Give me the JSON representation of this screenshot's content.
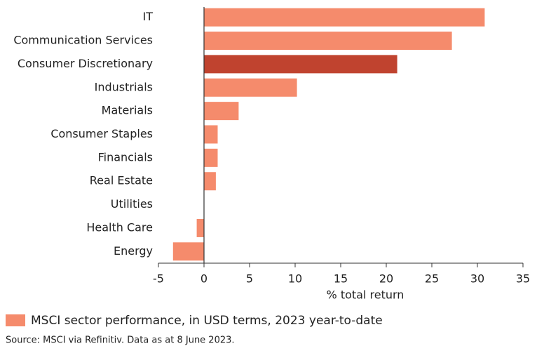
{
  "chart_data": {
    "type": "hbar",
    "categories": [
      "IT",
      "Communication Services",
      "Consumer Discretionary",
      "Industrials",
      "Materials",
      "Consumer Staples",
      "Financials",
      "Real Estate",
      "Utilities",
      "Health Care",
      "Energy"
    ],
    "series": [
      {
        "name": "MSCI sector performance, in USD terms, 2023 year-to-date",
        "color": "#f58b6c",
        "values": [
          30.8,
          27.2,
          21.2,
          10.2,
          3.8,
          1.5,
          1.5,
          1.3,
          0,
          -0.8,
          -3.4
        ],
        "colors": [
          "#f58b6c",
          "#f58b6c",
          "#c0432f",
          "#f58b6c",
          "#f58b6c",
          "#f58b6c",
          "#f58b6c",
          "#f58b6c",
          "#f58b6c",
          "#f58b6c",
          "#f58b6c"
        ]
      }
    ],
    "xlabel": "% total return",
    "xlim": [
      -5,
      35
    ],
    "xticks": [
      -5,
      0,
      5,
      10,
      15,
      20,
      25,
      30,
      35
    ],
    "source": "Source: MSCI via Refinitiv. Data as at 8 June 2023."
  }
}
